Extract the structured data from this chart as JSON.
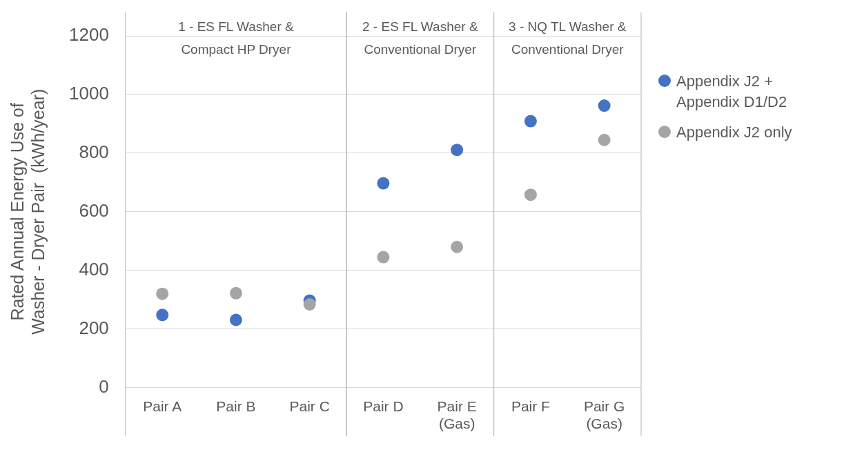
{
  "chart_data": {
    "type": "scatter",
    "ylabel": "Rated Annual Energy Use of Washer - Dryer Pair  (kWh/year)",
    "categories": [
      "Pair A",
      "Pair B",
      "Pair C",
      "Pair D",
      "Pair E (Gas)",
      "Pair F",
      "Pair G (Gas)"
    ],
    "series": [
      {
        "name": "Appendix J2 + Appendix D1/D2",
        "color": "#4472c4",
        "values": [
          248,
          231,
          297,
          697,
          811,
          909,
          962
        ]
      },
      {
        "name": "Appendix J2 only",
        "color": "#a5a5a5",
        "values": [
          320,
          322,
          284,
          445,
          480,
          658,
          845
        ]
      }
    ],
    "ylim": [
      0,
      1200
    ],
    "yticks": [
      0,
      200,
      400,
      600,
      800,
      1000,
      1200
    ],
    "grid": "y",
    "legend": "right",
    "marker": "circle",
    "annotations": [
      "1 - ES FL Washer & Compact HP Dryer",
      "2 - ES FL Washer & Conventional Dryer",
      "3 - NQ TL Washer & Conventional Dryer"
    ]
  }
}
